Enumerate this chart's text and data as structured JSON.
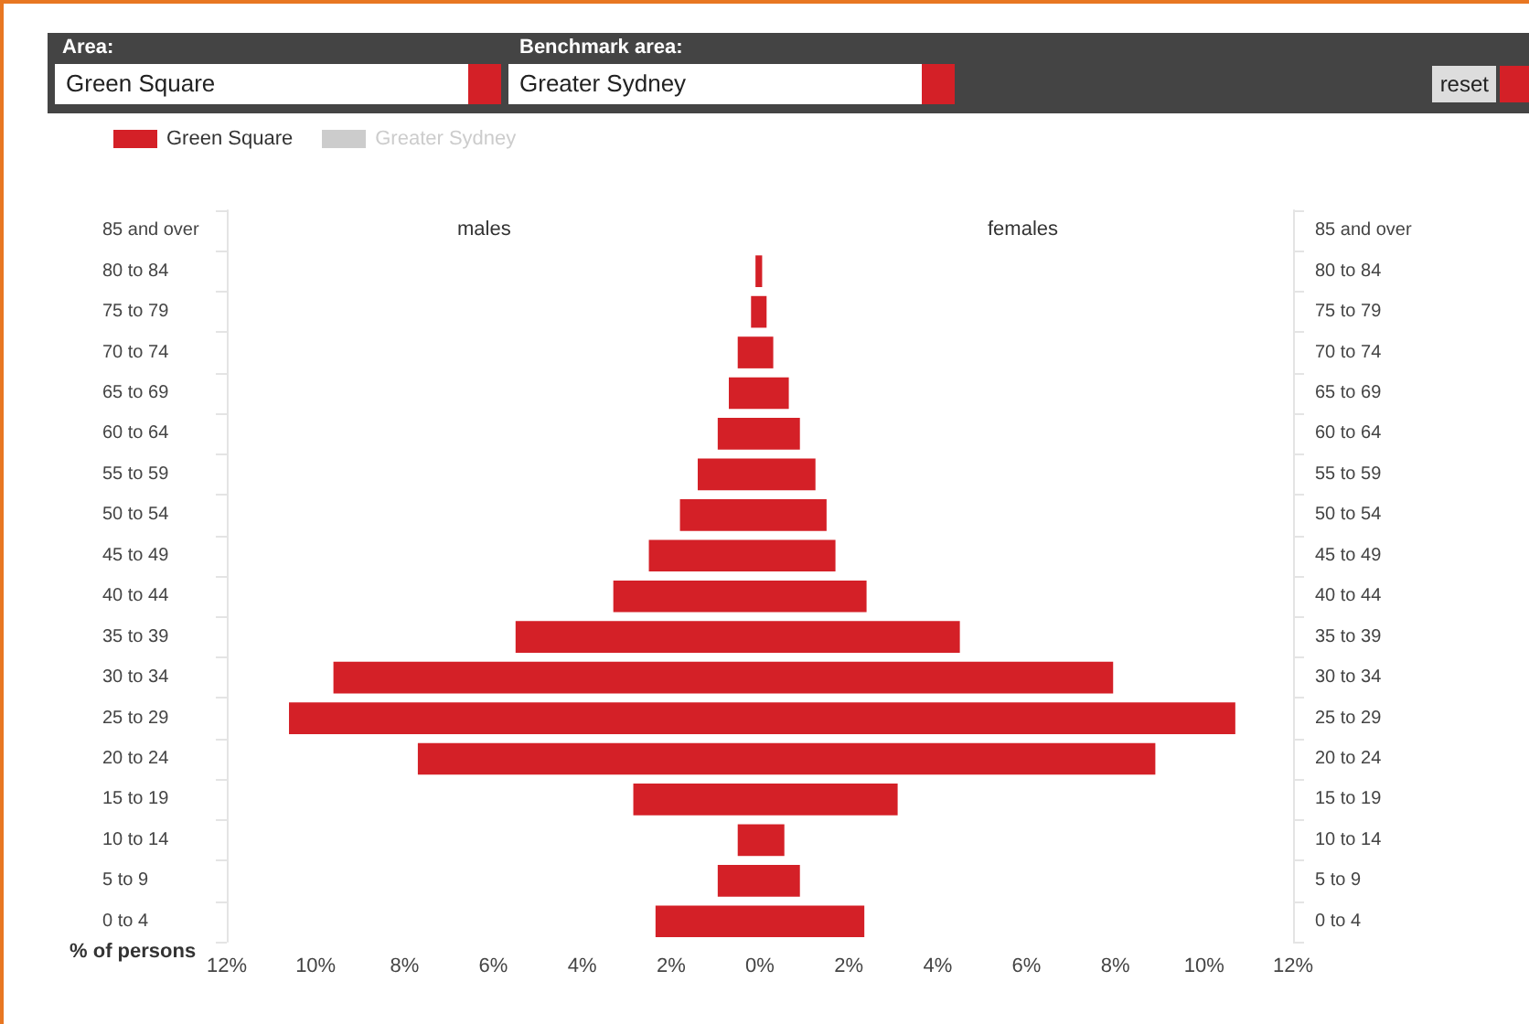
{
  "chart_data": {
    "type": "bar",
    "orientation": "horizontal",
    "stacked": true,
    "categories": [
      "85 and over",
      "80 to 84",
      "75 to 79",
      "70 to 74",
      "65 to 69",
      "60 to 64",
      "55 to 59",
      "50 to 54",
      "45 to 49",
      "40 to 44",
      "35 to 39",
      "30 to 34",
      "25 to 29",
      "20 to 24",
      "15 to 19",
      "10 to 14",
      "5 to 9",
      "0 to 4"
    ],
    "series": [
      {
        "color": "#d42027",
        "values": [
          0,
          -0.1,
          -0.2,
          -0.5,
          -0.7,
          -0.95,
          -1.4,
          -1.8,
          -2.5,
          -3.3,
          -5.5,
          -9.6,
          -10.6,
          -7.7,
          -2.85,
          -0.5,
          -0.95,
          -2.35
        ]
      },
      {
        "color": "#d42027",
        "values": [
          0,
          0.05,
          0.15,
          0.3,
          0.65,
          0.9,
          1.25,
          1.5,
          1.7,
          2.4,
          4.5,
          7.95,
          10.7,
          8.9,
          3.1,
          0.55,
          0.9,
          2.35
        ]
      }
    ],
    "xlim": [
      -12,
      12
    ],
    "xticks": [
      {
        "value": -12,
        "label": "12%"
      },
      {
        "value": -10,
        "label": "10%"
      },
      {
        "value": -8,
        "label": "8%"
      },
      {
        "value": -6,
        "label": "6%"
      },
      {
        "value": -4,
        "label": "4%"
      },
      {
        "value": -2,
        "label": "2%"
      },
      {
        "value": 0,
        "label": "0%"
      },
      {
        "value": 2,
        "label": "2%"
      },
      {
        "value": 4,
        "label": "4%"
      },
      {
        "value": 6,
        "label": "6%"
      },
      {
        "value": 8,
        "label": "8%"
      },
      {
        "value": 10,
        "label": "10%"
      },
      {
        "value": 12,
        "label": "12%"
      }
    ],
    "xlabel": "% of persons",
    "grid": false,
    "annotations": [
      "males",
      "females",
      "Area:",
      "Green Square",
      "Benchmark area:",
      "Greater Sydney",
      "reset",
      "Green Square",
      "Greater Sydney"
    ]
  }
}
